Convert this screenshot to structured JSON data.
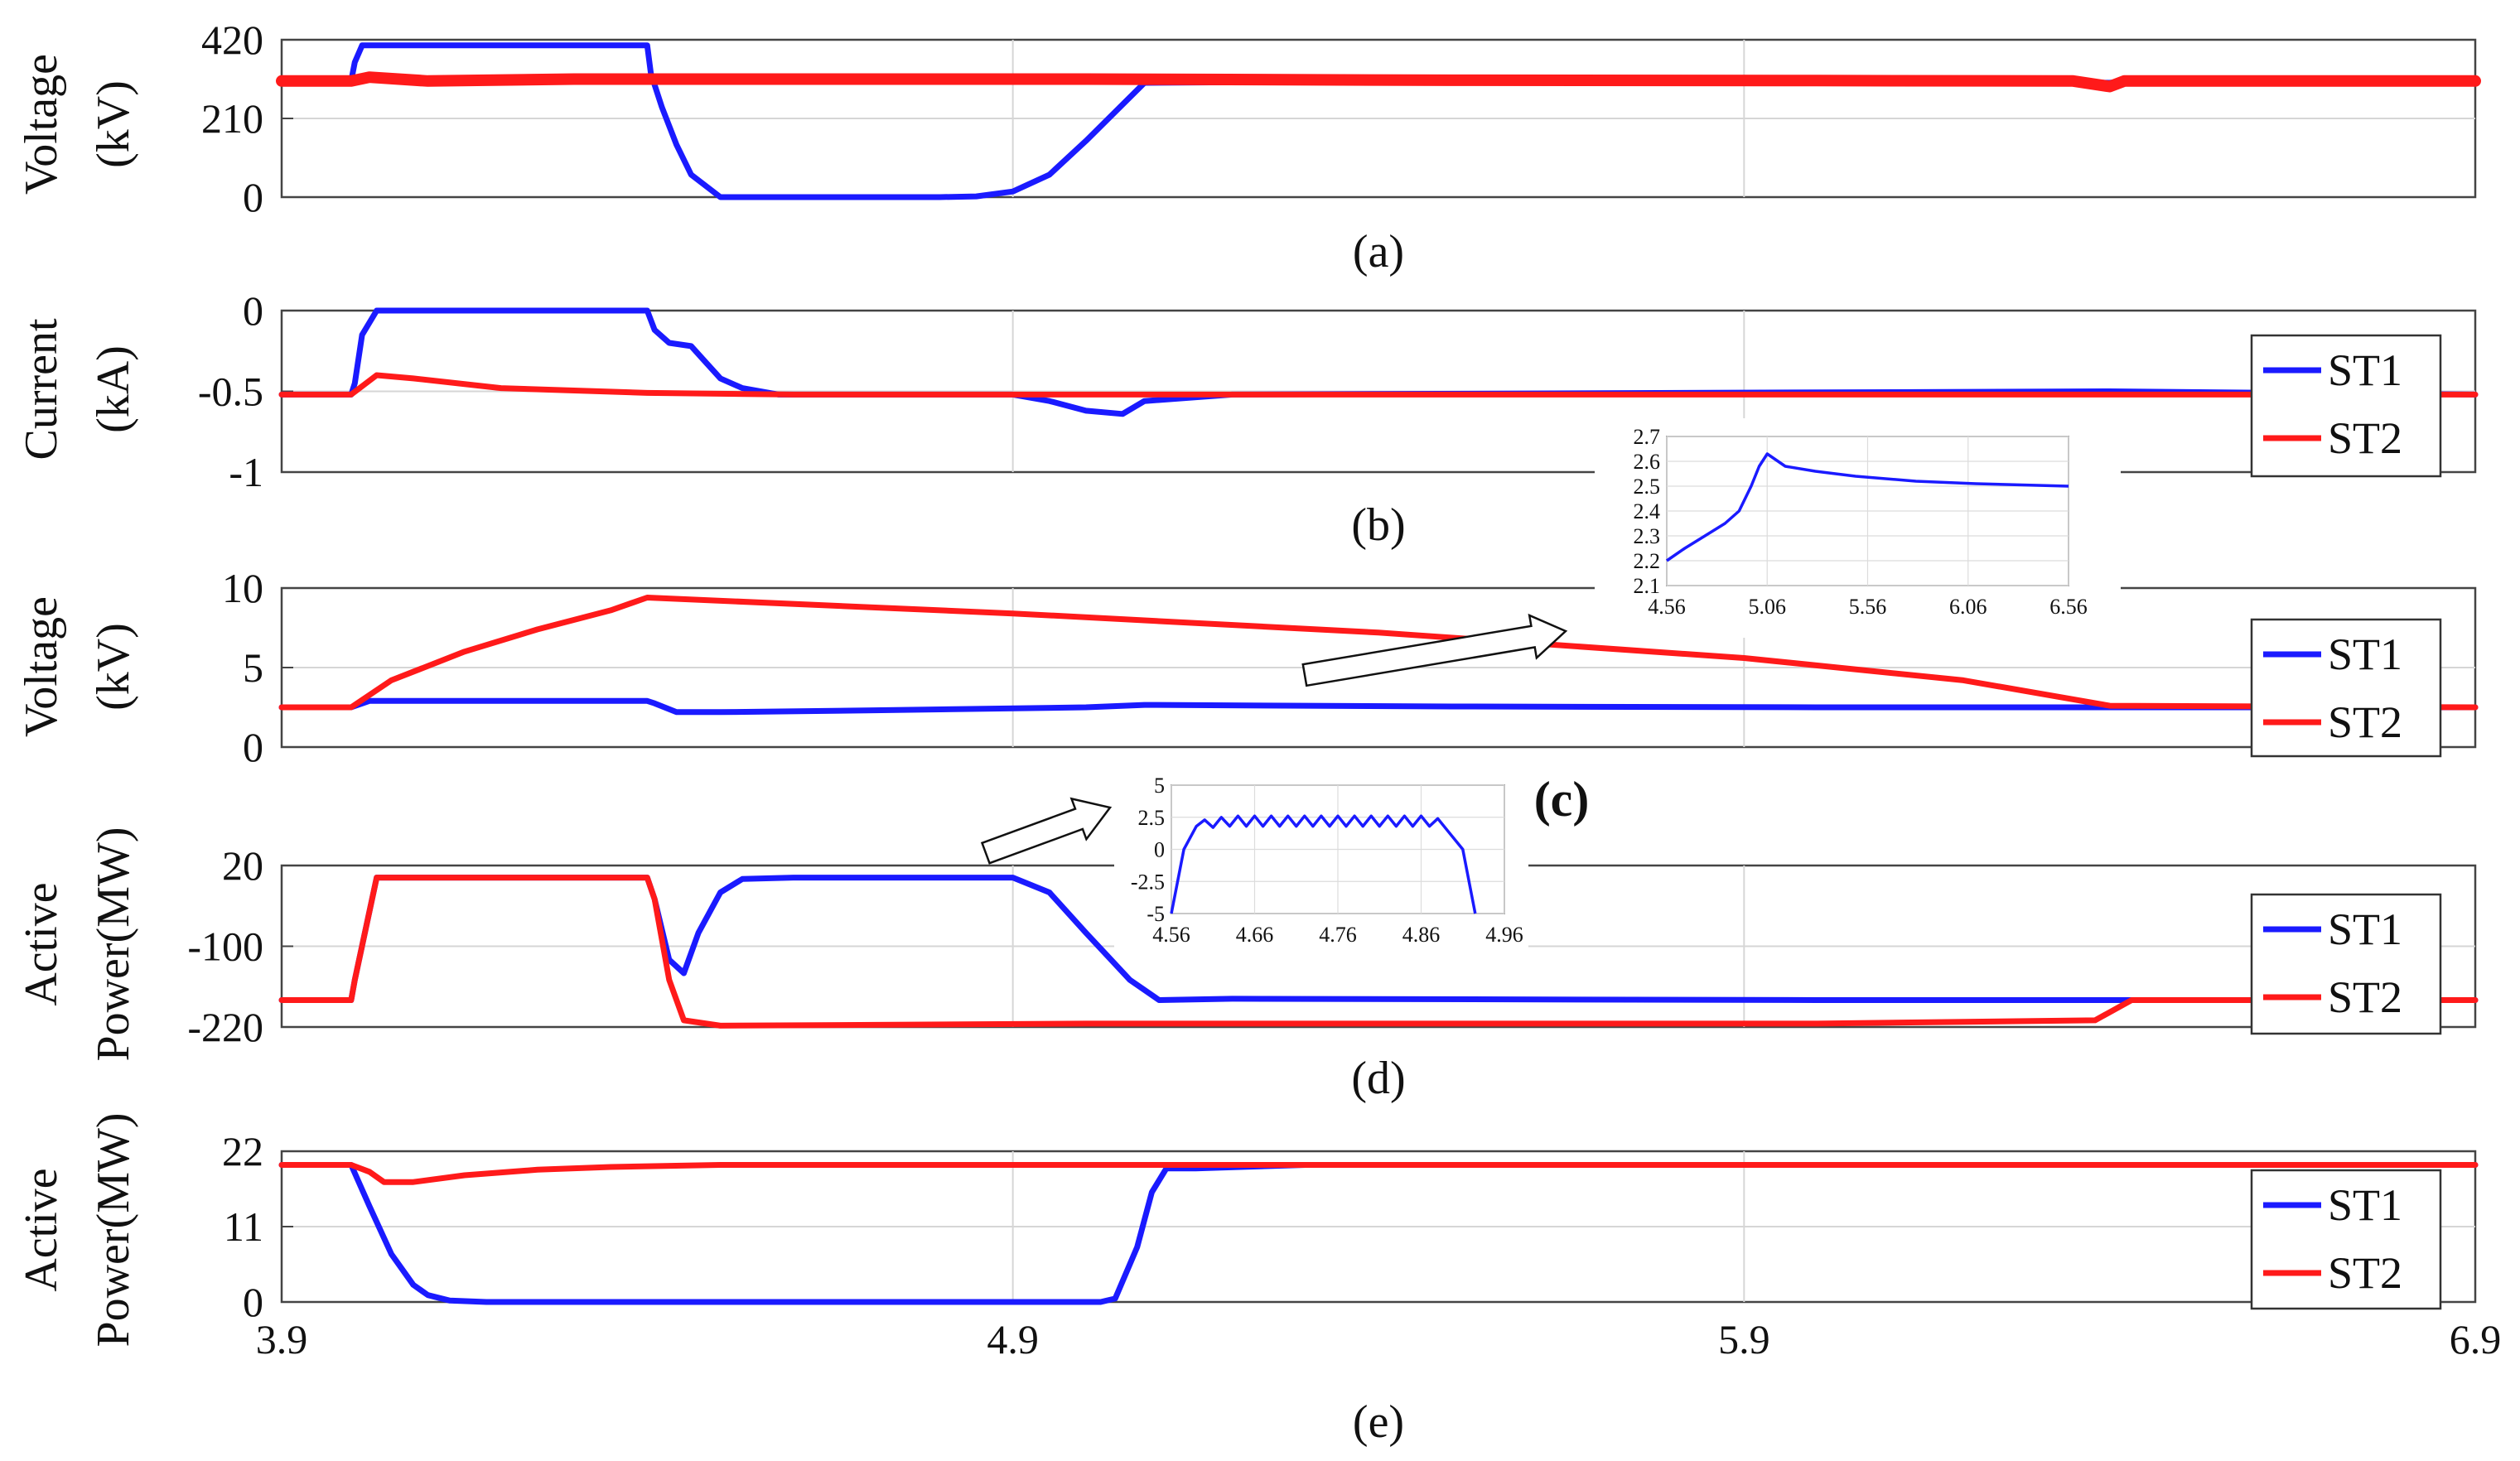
{
  "chart_data": [
    {
      "panel": "a",
      "type": "line",
      "caption": "(a)",
      "ylabel": [
        "Voltage",
        "(kV)"
      ],
      "ylim": [
        0,
        420
      ],
      "yticks": [
        "420",
        "210",
        "0"
      ],
      "xlim": [
        3.9,
        6.9
      ],
      "grid": true,
      "legend": null,
      "series": [
        {
          "color": "#1a1aff",
          "x": [
            3.9,
            3.995,
            4.0,
            4.01,
            4.4,
            4.405,
            4.42,
            4.44,
            4.46,
            4.5,
            4.8,
            4.85,
            4.9,
            4.95,
            5.0,
            5.08,
            5.5,
            6.0,
            6.3,
            6.4,
            6.42,
            6.9
          ],
          "y": [
            310,
            310,
            360,
            405,
            405,
            330,
            240,
            140,
            60,
            0,
            0,
            2,
            15,
            60,
            150,
            305,
            310,
            310,
            310,
            305,
            310,
            310
          ]
        },
        {
          "color": "#ff1a1a",
          "x": [
            3.9,
            3.995,
            4.02,
            4.1,
            4.3,
            4.5,
            5.0,
            5.5,
            6.0,
            6.35,
            6.4,
            6.42,
            6.9
          ],
          "y": [
            310,
            310,
            320,
            310,
            315,
            315,
            315,
            312,
            311,
            310,
            295,
            310,
            310
          ],
          "band": 12
        }
      ]
    },
    {
      "panel": "b",
      "type": "line",
      "caption": "(b)",
      "ylabel": [
        "Current",
        "(kA)"
      ],
      "ylim": [
        -1,
        0
      ],
      "yticks": [
        "0",
        "-0.5",
        "-1"
      ],
      "xlim": [
        3.9,
        6.9
      ],
      "grid": true,
      "legend": {
        "position": "right",
        "entries": [
          "ST1",
          "ST2"
        ]
      },
      "series": [
        {
          "name": "ST1",
          "color": "#1a1aff",
          "x": [
            3.9,
            3.995,
            4.0,
            4.01,
            4.03,
            4.4,
            4.41,
            4.43,
            4.46,
            4.48,
            4.5,
            4.53,
            4.58,
            4.9,
            4.95,
            5.0,
            5.05,
            5.08,
            5.2,
            6.4,
            6.9
          ],
          "y": [
            -0.52,
            -0.52,
            -0.45,
            -0.15,
            0,
            0,
            -0.12,
            -0.2,
            -0.22,
            -0.32,
            -0.42,
            -0.48,
            -0.52,
            -0.52,
            -0.56,
            -0.62,
            -0.64,
            -0.56,
            -0.52,
            -0.5,
            -0.52
          ]
        },
        {
          "name": "ST2",
          "color": "#ff1a1a",
          "x": [
            3.9,
            3.995,
            4.03,
            4.08,
            4.2,
            4.4,
            4.6,
            5.0,
            6.0,
            6.9
          ],
          "y": [
            -0.52,
            -0.52,
            -0.4,
            -0.42,
            -0.48,
            -0.51,
            -0.52,
            -0.52,
            -0.52,
            -0.52
          ]
        }
      ],
      "inset": {
        "xticks": [
          "4.56",
          "5.06",
          "5.56",
          "6.06",
          "6.56"
        ],
        "yticks": [
          "2.7",
          "2.6",
          "2.5",
          "2.4",
          "2.3",
          "2.2",
          "2.1"
        ],
        "xlim": [
          4.56,
          6.56
        ],
        "ylim": [
          2.1,
          2.7
        ],
        "series": {
          "color": "#1a1aff",
          "x": [
            4.56,
            4.65,
            4.75,
            4.85,
            4.92,
            4.98,
            5.02,
            5.06,
            5.15,
            5.3,
            5.5,
            5.8,
            6.1,
            6.56
          ],
          "y": [
            2.2,
            2.25,
            2.3,
            2.35,
            2.4,
            2.5,
            2.58,
            2.63,
            2.58,
            2.56,
            2.54,
            2.52,
            2.51,
            2.5
          ]
        }
      }
    },
    {
      "panel": "c",
      "type": "line",
      "caption": "(c)",
      "ylabel": [
        "Voltage",
        "(kV)"
      ],
      "ylim": [
        0,
        10
      ],
      "yticks": [
        "10",
        "5",
        "0"
      ],
      "xlim": [
        3.9,
        6.9
      ],
      "grid": true,
      "legend": {
        "position": "right",
        "entries": [
          "ST1",
          "ST2"
        ]
      },
      "series": [
        {
          "name": "ST1",
          "color": "#1a1aff",
          "x": [
            3.9,
            3.995,
            4.02,
            4.4,
            4.41,
            4.44,
            4.5,
            4.7,
            5.0,
            5.08,
            5.5,
            6.0,
            6.9
          ],
          "y": [
            2.5,
            2.5,
            2.9,
            2.9,
            2.75,
            2.2,
            2.2,
            2.3,
            2.5,
            2.65,
            2.55,
            2.5,
            2.5
          ]
        },
        {
          "name": "ST2",
          "color": "#ff1a1a",
          "x": [
            3.9,
            3.995,
            4.05,
            4.15,
            4.25,
            4.35,
            4.4,
            4.9,
            5.4,
            5.9,
            6.2,
            6.4,
            6.9
          ],
          "y": [
            2.5,
            2.5,
            4.2,
            6.0,
            7.4,
            8.6,
            9.4,
            8.4,
            7.2,
            5.6,
            4.2,
            2.6,
            2.5
          ]
        }
      ]
    },
    {
      "panel": "d",
      "type": "line",
      "caption": "(d)",
      "ylabel": [
        "Active",
        "Power(MW)"
      ],
      "ylim": [
        -220,
        20
      ],
      "yticks": [
        "20",
        "-100",
        "-220"
      ],
      "xlim": [
        3.9,
        6.9
      ],
      "grid": true,
      "legend": {
        "position": "right",
        "entries": [
          "ST1",
          "ST2"
        ]
      },
      "series": [
        {
          "name": "ST1",
          "color": "#1a1aff",
          "x": [
            3.9,
            3.995,
            4.0,
            4.03,
            4.4,
            4.41,
            4.43,
            4.45,
            4.47,
            4.5,
            4.53,
            4.6,
            4.9,
            4.95,
            5.0,
            5.06,
            5.1,
            5.2,
            6.0,
            6.4,
            6.9
          ],
          "y": [
            -180,
            -180,
            -150,
            2,
            2,
            -30,
            -120,
            -140,
            -80,
            -20,
            0,
            2,
            2,
            -20,
            -80,
            -150,
            -180,
            -178,
            -180,
            -180,
            -180
          ]
        },
        {
          "name": "ST2",
          "color": "#ff1a1a",
          "x": [
            3.9,
            3.995,
            4.0,
            4.03,
            4.4,
            4.41,
            4.43,
            4.45,
            4.5,
            5.0,
            6.0,
            6.38,
            6.43,
            6.9
          ],
          "y": [
            -180,
            -180,
            -150,
            2,
            2,
            -30,
            -150,
            -210,
            -218,
            -215,
            -215,
            -210,
            -180,
            -180
          ]
        }
      ],
      "inset": {
        "xticks": [
          "4.56",
          "4.66",
          "4.76",
          "4.86",
          "4.96"
        ],
        "yticks": [
          "5",
          "2.5",
          "0",
          "-2.5",
          "-5"
        ],
        "xlim": [
          4.56,
          4.96
        ],
        "ylim": [
          -5,
          5
        ],
        "series": {
          "color": "#1a1aff",
          "x": [
            4.56,
            4.575,
            4.59,
            4.6,
            4.61,
            4.62,
            4.63,
            4.64,
            4.65,
            4.66,
            4.67,
            4.68,
            4.69,
            4.7,
            4.71,
            4.72,
            4.73,
            4.74,
            4.75,
            4.76,
            4.77,
            4.78,
            4.79,
            4.8,
            4.81,
            4.82,
            4.83,
            4.84,
            4.85,
            4.86,
            4.87,
            4.88,
            4.89,
            4.91,
            4.925
          ],
          "y": [
            -5,
            0,
            1.8,
            2.3,
            1.7,
            2.5,
            1.8,
            2.6,
            1.8,
            2.6,
            1.8,
            2.6,
            1.8,
            2.6,
            1.8,
            2.6,
            1.8,
            2.6,
            1.8,
            2.6,
            1.8,
            2.6,
            1.8,
            2.6,
            1.8,
            2.6,
            1.8,
            2.6,
            1.8,
            2.6,
            1.8,
            2.4,
            1.6,
            0,
            -5
          ]
        }
      }
    },
    {
      "panel": "e",
      "type": "line",
      "caption": "(e)",
      "ylabel": [
        "Active",
        "Power(MW)"
      ],
      "ylim": [
        0,
        22
      ],
      "yticks": [
        "22",
        "11",
        "0"
      ],
      "xlim": [
        3.9,
        6.9
      ],
      "xticks": [
        "3.9",
        "4.9",
        "5.9",
        "6.9"
      ],
      "grid": true,
      "legend": {
        "position": "right",
        "entries": [
          "ST1",
          "ST2"
        ]
      },
      "series": [
        {
          "name": "ST1",
          "color": "#1a1aff",
          "x": [
            3.9,
            3.995,
            4.02,
            4.05,
            4.08,
            4.1,
            4.13,
            4.18,
            4.5,
            5.02,
            5.04,
            5.07,
            5.09,
            5.11,
            5.15,
            5.3,
            6.9
          ],
          "y": [
            20,
            20,
            14,
            7,
            2.5,
            1,
            0.2,
            0,
            0,
            0,
            0.5,
            8,
            16,
            19.5,
            19.5,
            20,
            20
          ]
        },
        {
          "name": "ST2",
          "color": "#ff1a1a",
          "x": [
            3.9,
            3.995,
            4.02,
            4.04,
            4.08,
            4.15,
            4.25,
            4.35,
            4.5,
            6.9
          ],
          "y": [
            20,
            20,
            19,
            17.5,
            17.5,
            18.5,
            19.3,
            19.7,
            20,
            20
          ]
        }
      ]
    }
  ],
  "annotation": "(c)"
}
